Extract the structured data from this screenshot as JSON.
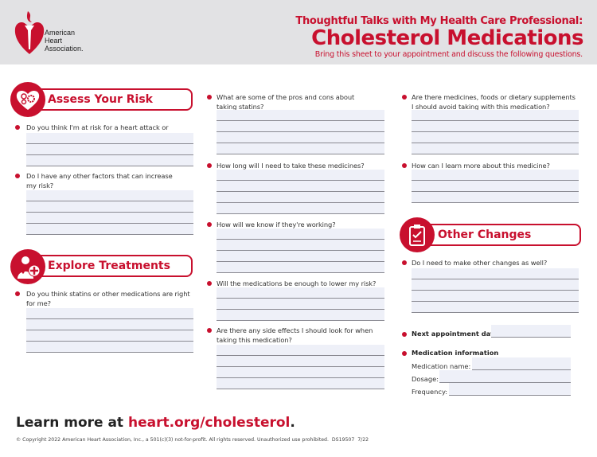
{
  "header": {
    "org_name": [
      "American",
      "Heart",
      "Association."
    ],
    "subtitle": "Thoughtful Talks with My Health Care Professional:",
    "title": "Cholesterol Medications",
    "instructions": "Bring this sheet to your appointment and discuss the following questions."
  },
  "sections": {
    "assess": {
      "title": "Assess Your Risk",
      "icon": "heart-gears-icon",
      "questions": [
        "Do you think I'm at risk for a heart attack or stroke?",
        "Do I have any other factors that can increase my risk?"
      ]
    },
    "explore": {
      "title": "Explore Treatments",
      "icon": "person-plus-icon",
      "questions": [
        "Do you think statins or other medications are right for me?"
      ]
    },
    "middle": {
      "questions": [
        "What are some of the pros and cons about taking statins?",
        "How long will I need to take these medicines?",
        "How will we know if they're working?",
        "Will the medications be enough to lower my risk?",
        "Are there any side effects I should look for when taking this medication?"
      ]
    },
    "right": {
      "questions": [
        "Are there medicines, foods or dietary supplements I should avoid taking with this medication?",
        "How can I learn more about this medicine?"
      ]
    },
    "other": {
      "title": "Other Changes",
      "icon": "clipboard-check-icon",
      "questions": [
        "Do I need to make other changes as well?"
      ]
    },
    "appointment": {
      "next_label": "Next appointment date:",
      "med_info_label": "Medication information",
      "med_name_label": "Medication name:",
      "dosage_label": "Dosage:",
      "frequency_label": "Frequency:"
    }
  },
  "footer": {
    "learn_prefix": "Learn more at ",
    "learn_link": "heart.org/cholesterol",
    "learn_suffix": ".",
    "copyright": "© Copyright 2022 American Heart Association, Inc., a 501(c)(3) not-for-profit. All rights reserved. Unauthorized use prohibited.  DS19507  7/22"
  },
  "colors": {
    "brand_red": "#c8102e",
    "header_bg": "#e2e2e4",
    "field_bg": "#eef0f8"
  }
}
